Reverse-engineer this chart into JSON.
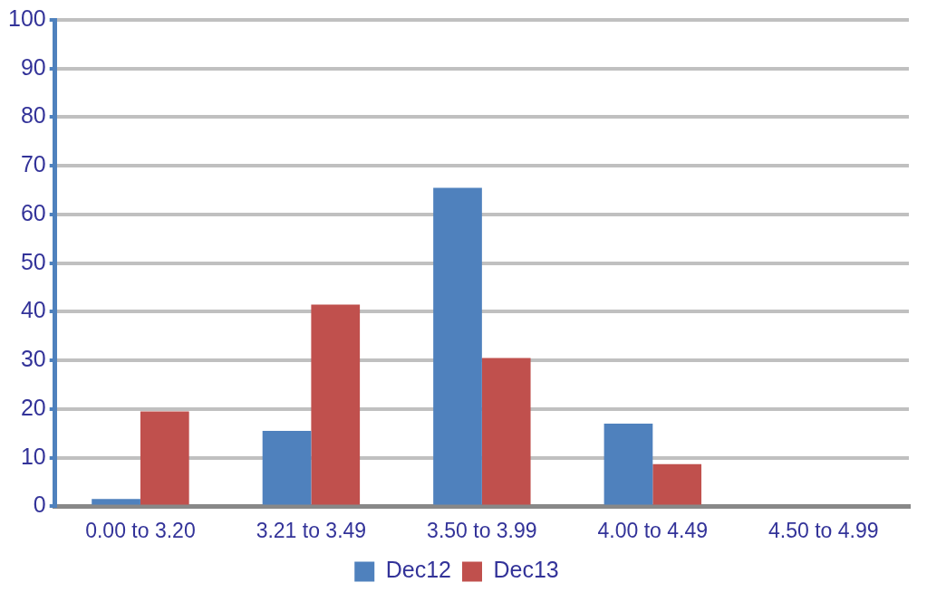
{
  "chart_data": {
    "type": "bar",
    "categories": [
      "0.00 to 3.20",
      "3.21 to 3.49",
      "3.50 to 3.99",
      "4.00 to 4.49",
      "4.50 to 4.99"
    ],
    "series": [
      {
        "name": "Dec12",
        "color": "#4f81bd",
        "values": [
          1.5,
          15.5,
          65.5,
          17,
          0
        ]
      },
      {
        "name": "Dec13",
        "color": "#c0504d",
        "values": [
          19.5,
          41.5,
          30.5,
          8.7,
          0
        ]
      }
    ],
    "ylim": [
      0,
      100
    ],
    "yticks": [
      0,
      10,
      20,
      30,
      40,
      50,
      60,
      70,
      80,
      90,
      100
    ],
    "grid": "y",
    "legend": "bottom"
  }
}
